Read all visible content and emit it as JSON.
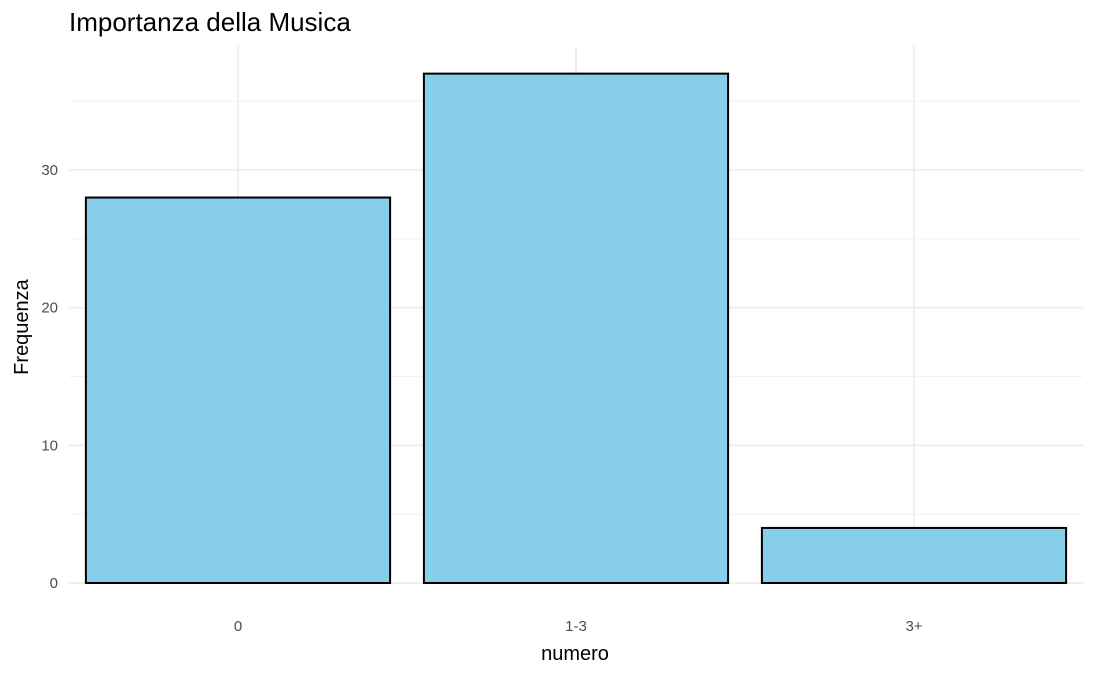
{
  "chart_data": {
    "type": "bar",
    "title": "Importanza della Musica",
    "xlabel": "numero",
    "ylabel": "Frequenza",
    "categories": [
      "0",
      "1-3",
      "3+"
    ],
    "values": [
      28,
      37,
      4
    ],
    "ylim": [
      0,
      38
    ],
    "yticks": [
      0,
      10,
      20,
      30
    ],
    "grid": true,
    "bar_color": "#87CEEB",
    "bar_edge_color": "#000000"
  }
}
